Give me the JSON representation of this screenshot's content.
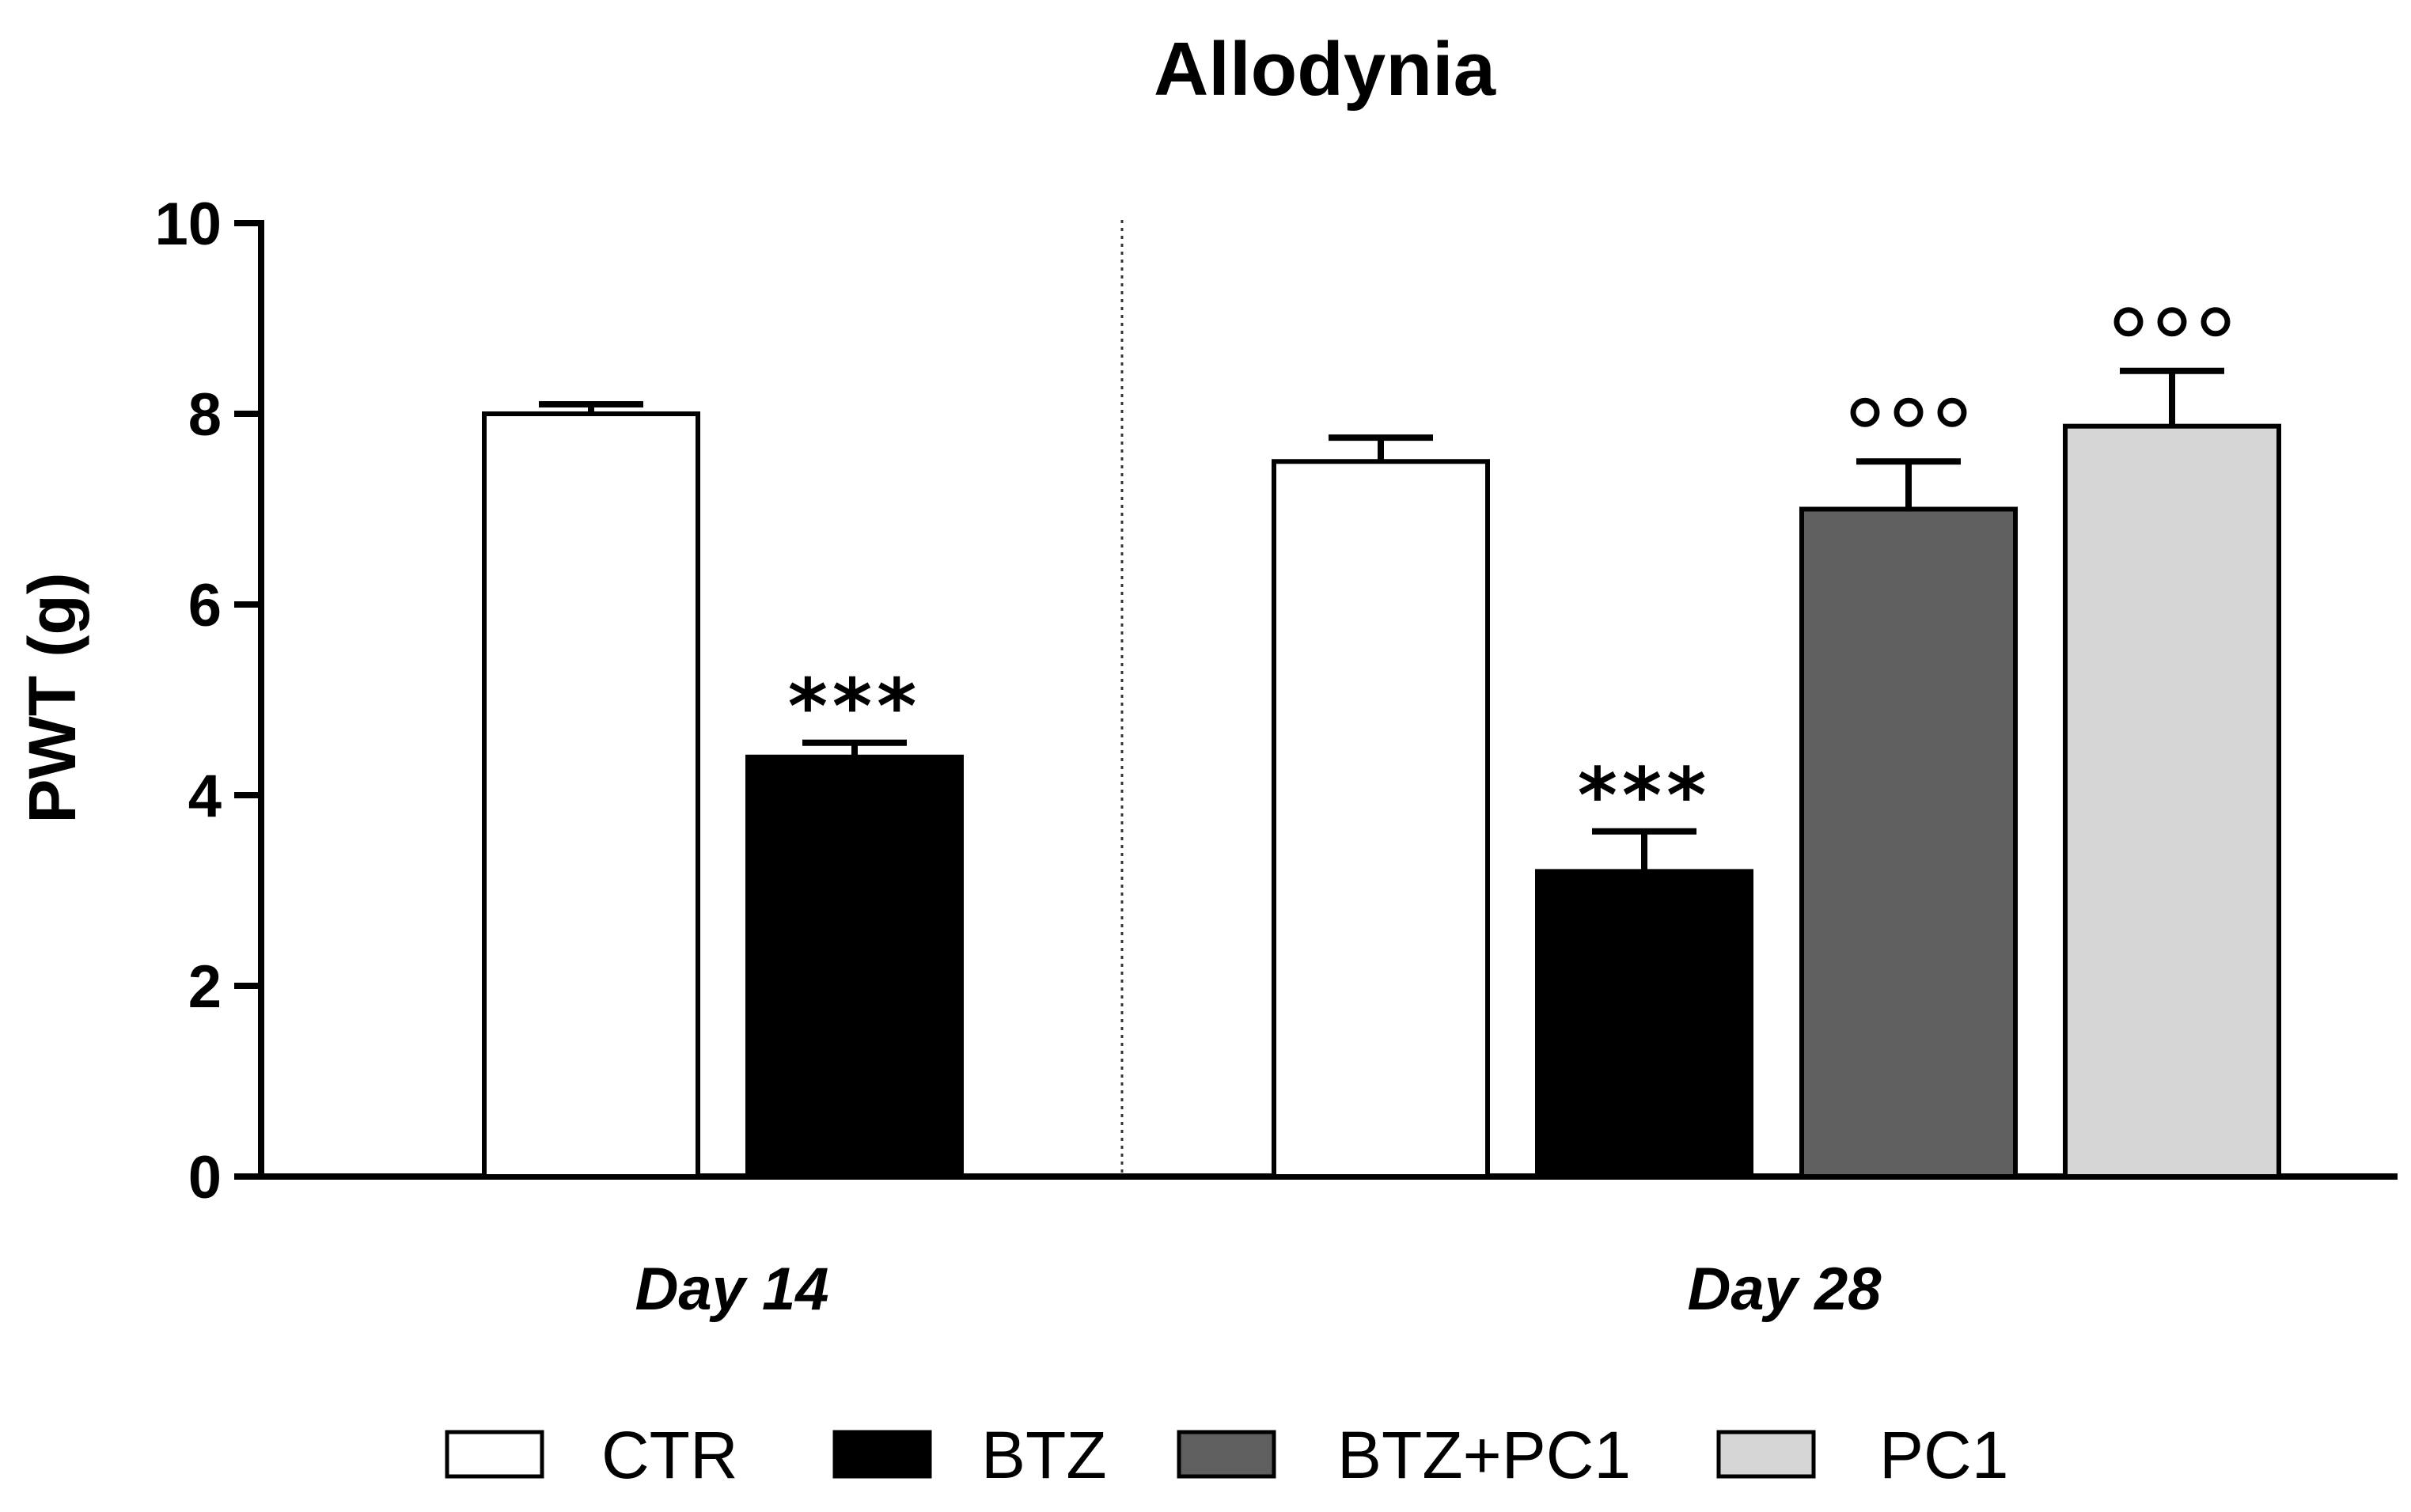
{
  "chart_data": {
    "type": "bar",
    "title": "Allodynia",
    "ylabel": "PWT (g)",
    "xlabel": "",
    "ylim": [
      0,
      10
    ],
    "yticks": [
      0,
      2,
      4,
      6,
      8,
      10
    ],
    "yticks_labels": [
      "0",
      "2",
      "4",
      "6",
      "8",
      "10"
    ],
    "groups": [
      {
        "label": "Day 14",
        "bars": [
          {
            "series": "CTR",
            "value": 8.0,
            "error": 0.1,
            "annotation": ""
          },
          {
            "series": "BTZ",
            "value": 4.4,
            "error": 0.15,
            "annotation": "***"
          }
        ]
      },
      {
        "label": "Day 28",
        "bars": [
          {
            "series": "CTR",
            "value": 7.5,
            "error": 0.25,
            "annotation": ""
          },
          {
            "series": "BTZ",
            "value": 3.2,
            "error": 0.42,
            "annotation": "***"
          },
          {
            "series": "BTZ+PC1",
            "value": 7.0,
            "error": 0.5,
            "annotation": "°°°"
          },
          {
            "series": "PC1",
            "value": 7.87,
            "error": 0.58,
            "annotation": "°°°"
          }
        ]
      }
    ],
    "series": [
      {
        "name": "CTR",
        "color": "#ffffff"
      },
      {
        "name": "BTZ",
        "color": "#000000"
      },
      {
        "name": "BTZ+PC1",
        "color": "#5f5f5f"
      },
      {
        "name": "PC1",
        "color": "#d6d6d6"
      }
    ],
    "legend_position": "bottom",
    "group_separator": "dotted"
  }
}
